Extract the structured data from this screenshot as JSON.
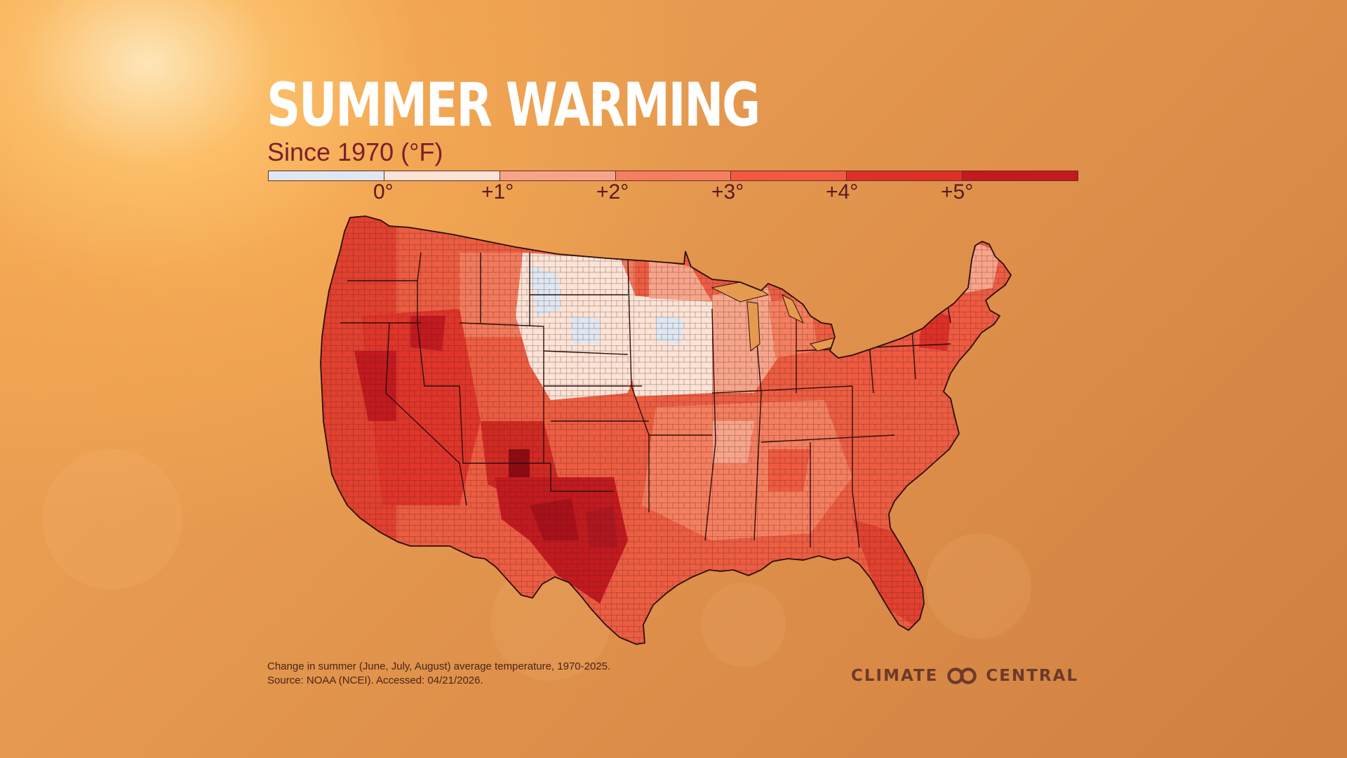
{
  "title": "SUMMER WARMING",
  "subtitle": "Since 1970 (°F)",
  "legend": {
    "colors": [
      "#dde8f3",
      "#fbe3d6",
      "#f7a58a",
      "#f47f5f",
      "#ef5a40",
      "#dd3128",
      "#c21a1f",
      "#8e0a12"
    ],
    "ticks": [
      "0°",
      "+1°",
      "+2°",
      "+3°",
      "+4°",
      "+5°"
    ]
  },
  "caption": {
    "line1": "Change in summer (June, July, August) average temperature, 1970-2025.",
    "line2": "Source: NOAA (NCEI). Accessed: 04/21/2026."
  },
  "brand": {
    "left": "CLIMATE",
    "right": "CENTRAL",
    "logo_icon": "linked-rings-icon"
  },
  "map": {
    "region": "contiguous United States",
    "outline_color": "#3a1a1a"
  }
}
